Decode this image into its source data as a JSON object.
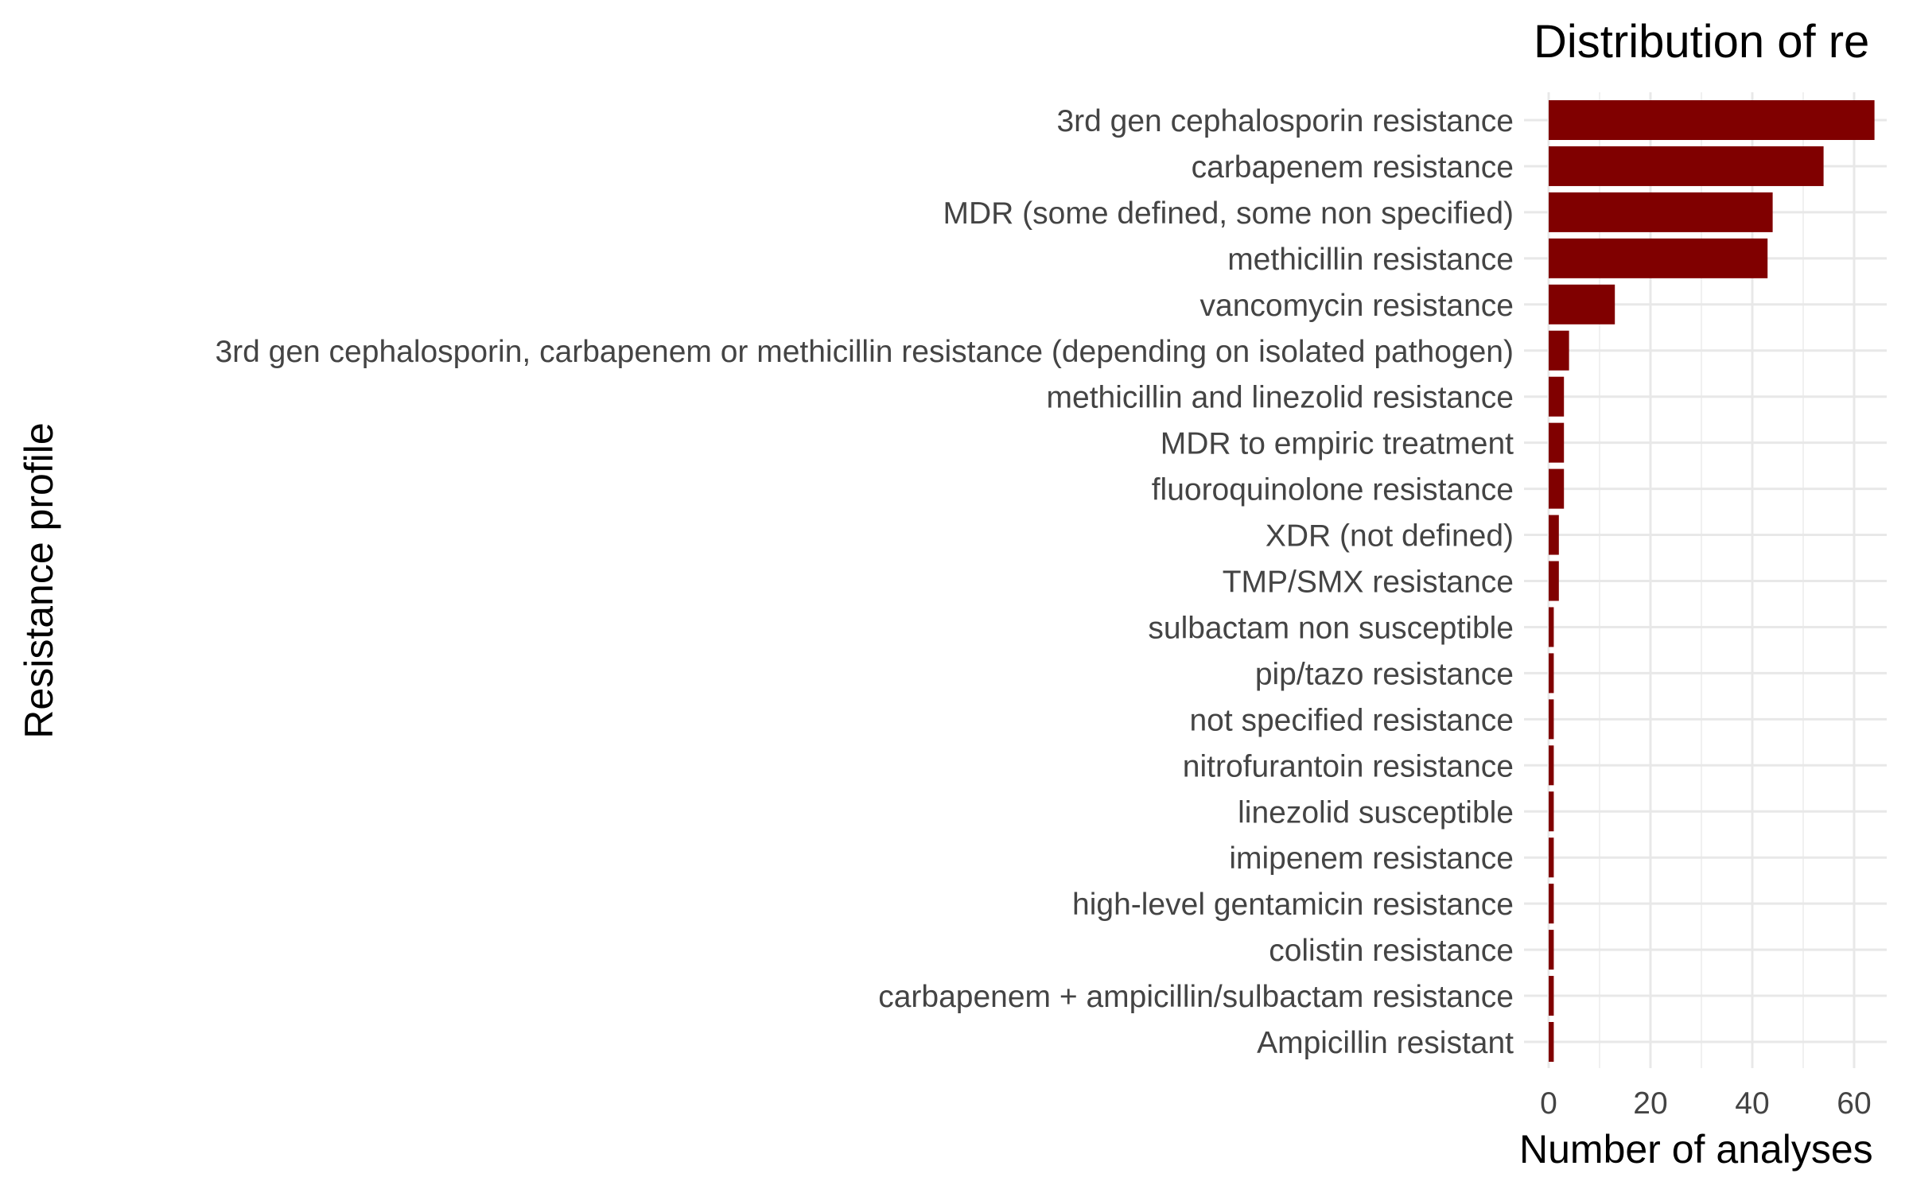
{
  "chart_data": {
    "type": "bar",
    "orientation": "horizontal",
    "title": "Distribution of re",
    "xlabel": "Number of analyses",
    "ylabel": "Resistance profile",
    "xlim": [
      0,
      67
    ],
    "xticks": [
      0,
      20,
      40,
      60
    ],
    "grid": true,
    "bar_color": "#800000",
    "categories": [
      "3rd gen cephalosporin resistance",
      "carbapenem resistance",
      "MDR (some defined, some non specified)",
      "methicillin resistance",
      "vancomycin resistance",
      "3rd gen cephalosporin, carbapenem or methicillin resistance (depending on isolated pathogen)",
      "methicillin and linezolid resistance",
      "MDR to empiric treatment",
      "fluoroquinolone resistance",
      "XDR (not defined)",
      "TMP/SMX resistance",
      "sulbactam non susceptible",
      "pip/tazo resistance",
      "not specified resistance",
      "nitrofurantoin resistance",
      "linezolid susceptible",
      "imipenem resistance",
      "high-level gentamicin resistance",
      "colistin resistance",
      "carbapenem + ampicillin/sulbactam resistance",
      "Ampicillin resistant"
    ],
    "values": [
      64,
      54,
      44,
      43,
      13,
      4,
      3,
      3,
      3,
      2,
      2,
      1,
      1,
      1,
      1,
      1,
      1,
      1,
      1,
      1,
      1
    ]
  }
}
